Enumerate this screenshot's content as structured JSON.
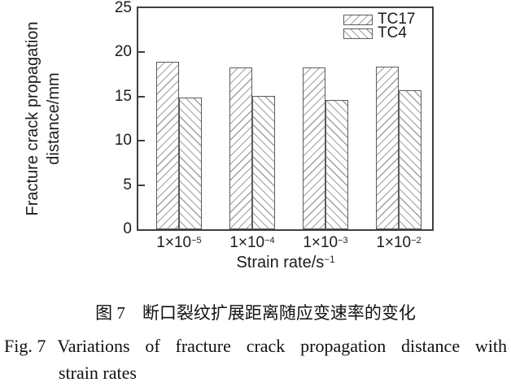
{
  "figure": {
    "caption_zh": "图 7　断口裂纹扩展距离随应变速率的变化",
    "caption_en_label": "Fig. 7",
    "caption_en_line1": "Variations of fracture crack propagation distance with",
    "caption_en_line2": "strain rates"
  },
  "chart_data": {
    "type": "bar",
    "title": "",
    "xlabel": "Strain rate/s⁻¹",
    "xlabel_base": "Strain rate/s",
    "xlabel_exp": "−1",
    "ylabel": "Fracture crack propagation distance/mm",
    "ylabel_lines": [
      "Fracture crack propagation",
      "distance/mm"
    ],
    "categories": [
      "1×10⁻⁵",
      "1×10⁻⁴",
      "1×10⁻³",
      "1×10⁻²"
    ],
    "x_tick_base": "1×10",
    "x_tick_exponents": [
      "−5",
      "−4",
      "−3",
      "−2"
    ],
    "series": [
      {
        "name": "TC17",
        "hatch": "forward-diagonal",
        "values": [
          18.9,
          18.3,
          18.3,
          18.4
        ]
      },
      {
        "name": "TC4",
        "hatch": "backward-diagonal",
        "values": [
          14.9,
          15.1,
          14.6,
          15.7
        ]
      }
    ],
    "ylim": [
      0,
      25
    ],
    "yticks": [
      0,
      5,
      10,
      15,
      20,
      25
    ],
    "grid": false,
    "legend_position": "top-right-inside",
    "colors": {
      "bar_fill": "#ffffff",
      "hatch_line": "#9f9f9f",
      "bar_border": "#5c5c5c",
      "axis": "#3f3f3f",
      "text": "#1c1c1c"
    }
  }
}
